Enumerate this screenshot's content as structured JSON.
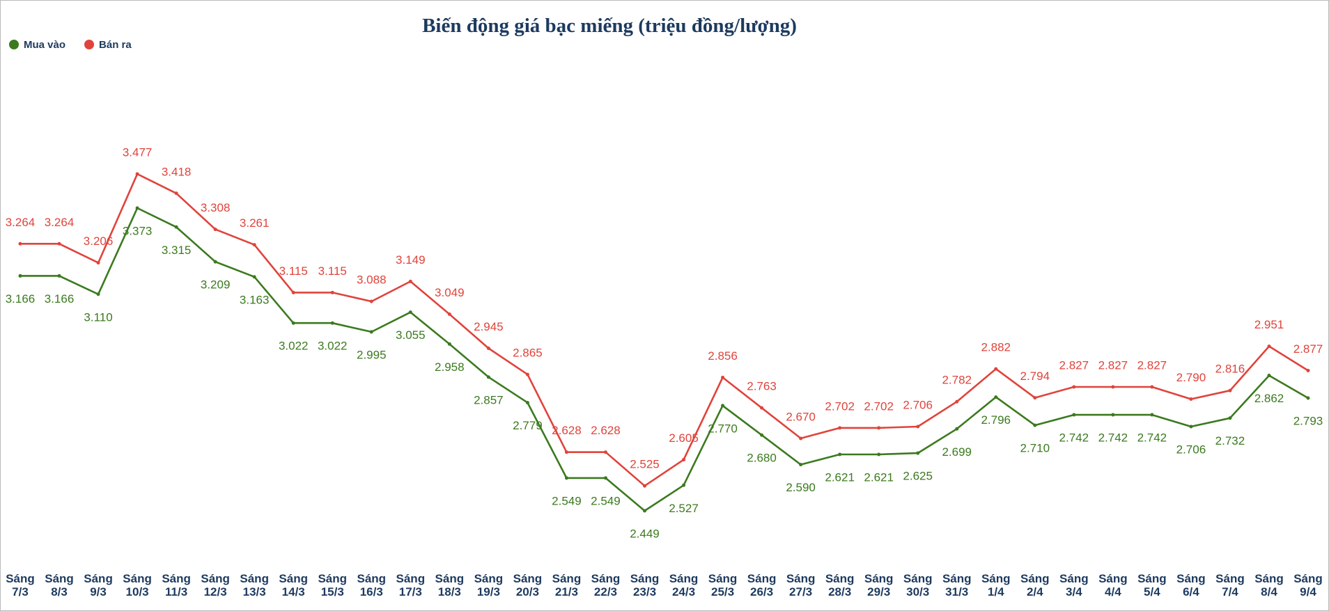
{
  "chart_data": {
    "type": "line",
    "title": "Biến động giá bạc miếng (triệu đồng/lượng)",
    "categories": [
      "Sáng 7/3",
      "Sáng 8/3",
      "Sáng 9/3",
      "Sáng 10/3",
      "Sáng 11/3",
      "Sáng 12/3",
      "Sáng 13/3",
      "Sáng 14/3",
      "Sáng 15/3",
      "Sáng 16/3",
      "Sáng 17/3",
      "Sáng 18/3",
      "Sáng 19/3",
      "Sáng 20/3",
      "Sáng 21/3",
      "Sáng 22/3",
      "Sáng 23/3",
      "Sáng 24/3",
      "Sáng 25/3",
      "Sáng 26/3",
      "Sáng 27/3",
      "Sáng 28/3",
      "Sáng 29/3",
      "Sáng 30/3",
      "Sáng 31/3",
      "Sáng 1/4",
      "Sáng 2/4",
      "Sáng 3/4",
      "Sáng 4/4",
      "Sáng 5/4",
      "Sáng 6/4",
      "Sáng 7/4",
      "Sáng 8/4",
      "Sáng 9/4"
    ],
    "series": [
      {
        "name": "Mua vào",
        "color": "#3b7a1e",
        "values": [
          3.166,
          3.166,
          3.11,
          3.373,
          3.315,
          3.209,
          3.163,
          3.022,
          3.022,
          2.995,
          3.055,
          2.958,
          2.857,
          2.779,
          2.549,
          2.549,
          2.449,
          2.527,
          2.77,
          2.68,
          2.59,
          2.621,
          2.621,
          2.625,
          2.699,
          2.796,
          2.71,
          2.742,
          2.742,
          2.742,
          2.706,
          2.732,
          2.862,
          2.793
        ],
        "value_labels": [
          "3.166",
          "3.166",
          "3.110",
          "3.373",
          "3.315",
          "3.209",
          "3.163",
          "3.022",
          "3.022",
          "2.995",
          "3.055",
          "2.958",
          "2.857",
          "2.779",
          "2.549",
          "2.549",
          "2.449",
          "2.527",
          "2.770",
          "2.680",
          "2.590",
          "2.621",
          "2.621",
          "2.625",
          "2.699",
          "2.796",
          "2.710",
          "2.742",
          "2.742",
          "2.742",
          "2.706",
          "2.732",
          "2.862",
          "2.793"
        ]
      },
      {
        "name": "Bán ra",
        "color": "#e0433b",
        "values": [
          3.264,
          3.264,
          3.206,
          3.477,
          3.418,
          3.308,
          3.261,
          3.115,
          3.115,
          3.088,
          3.149,
          3.049,
          2.945,
          2.865,
          2.628,
          2.628,
          2.525,
          2.605,
          2.856,
          2.763,
          2.67,
          2.702,
          2.702,
          2.706,
          2.782,
          2.882,
          2.794,
          2.827,
          2.827,
          2.827,
          2.79,
          2.816,
          2.951,
          2.877
        ],
        "value_labels": [
          "3.264",
          "3.264",
          "3.206",
          "3.477",
          "3.418",
          "3.308",
          "3.261",
          "3.115",
          "3.115",
          "3.088",
          "3.149",
          "3.049",
          "2.945",
          "2.865",
          "2.628",
          "2.628",
          "2.525",
          "2.605",
          "2.856",
          "2.763",
          "2.670",
          "2.702",
          "2.702",
          "2.706",
          "2.782",
          "2.882",
          "2.794",
          "2.827",
          "2.827",
          "2.827",
          "2.790",
          "2.816",
          "2.951",
          "2.877"
        ]
      }
    ],
    "legend": "top-left"
  }
}
